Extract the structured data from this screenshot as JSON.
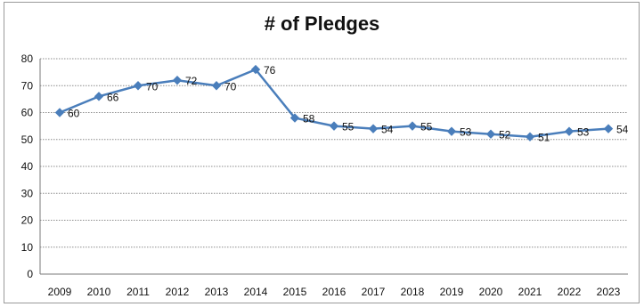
{
  "chart_data": {
    "type": "line",
    "title": "# of Pledges",
    "xlabel": "",
    "ylabel": "",
    "categories": [
      "2009",
      "2010",
      "2011",
      "2012",
      "2013",
      "2014",
      "2015",
      "2016",
      "2017",
      "2018",
      "2019",
      "2020",
      "2021",
      "2022",
      "2023"
    ],
    "series": [
      {
        "values": [
          60,
          66,
          70,
          72,
          70,
          76,
          58,
          55,
          54,
          55,
          53,
          52,
          51,
          53,
          54
        ],
        "color": "#4a7ebb",
        "marker": "diamond"
      }
    ],
    "ylim": [
      0,
      80
    ],
    "yticks": [
      0,
      10,
      20,
      30,
      40,
      50,
      60,
      70,
      80
    ],
    "grid": true,
    "data_labels": true,
    "legend": "none"
  }
}
